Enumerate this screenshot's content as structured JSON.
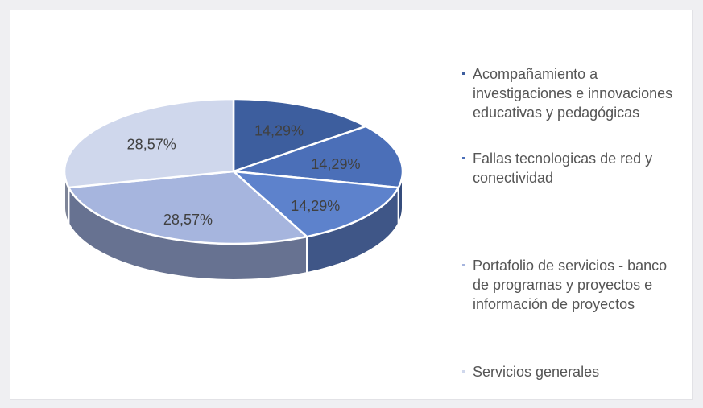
{
  "chart_data": {
    "type": "pie",
    "categories": [
      "Acompañamiento a investigaciones e innovaciones educativas y pedagógicas",
      "Fallas tecnologicas de red y conectividad",
      null,
      "Portafolio de servicios - banco de programas y proyectos e información de proyectos",
      "Servicios generales"
    ],
    "values": [
      14.29,
      14.29,
      14.29,
      28.57,
      28.57
    ],
    "value_labels": [
      "14,29%",
      "14,29%",
      "14,29%",
      "28,57%",
      "28,57%"
    ],
    "colors": [
      "#3d5e9e",
      "#4b6fb8",
      "#5d82cc",
      "#a6b5de",
      "#cfd7ec"
    ]
  }
}
